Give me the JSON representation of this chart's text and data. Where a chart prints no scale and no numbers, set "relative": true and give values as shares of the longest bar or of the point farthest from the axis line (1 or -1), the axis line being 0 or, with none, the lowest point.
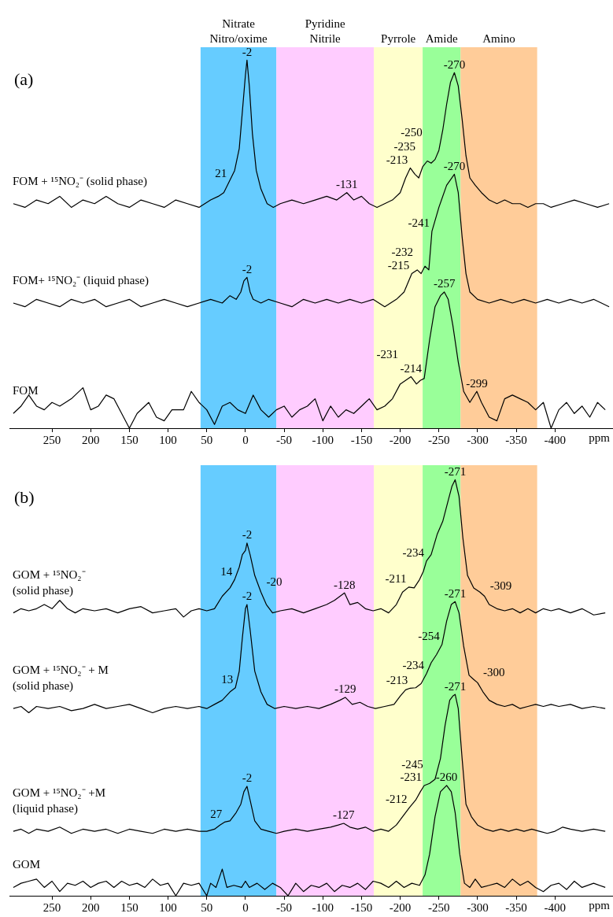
{
  "chart_data": [
    {
      "type": "line",
      "relative": true,
      "xlim": [
        305,
        -475
      ],
      "xticks": [
        250,
        200,
        150,
        100,
        50,
        0,
        -50,
        -100,
        -150,
        -200,
        -250,
        -300,
        -350,
        -400
      ],
      "xlabel": "ppm",
      "bands": [
        {
          "axis": "x",
          "from": 58,
          "to": -40,
          "label": "Nitrate\nNitro/oxime",
          "color": "#66ccff"
        },
        {
          "axis": "x",
          "from": -40,
          "to": -166,
          "label": "Pyridine\nNitrile",
          "color": "#ffccff"
        },
        {
          "axis": "x",
          "from": -166,
          "to": -229,
          "label": "Pyrrole",
          "color": "#ffffcc"
        },
        {
          "axis": "x",
          "from": -229,
          "to": -278,
          "label": "Amide",
          "color": "#99ff99"
        },
        {
          "axis": "x",
          "from": -278,
          "to": -377,
          "label": "Amino",
          "color": "#ffcc99"
        }
      ],
      "annotations": [
        "(a)",
        {
          "text": "21",
          "x": 21,
          "y": 0.67
        },
        {
          "text": "-2",
          "x": -2,
          "y": 1.0
        },
        {
          "text": "-131",
          "x": -131,
          "y": 0.64
        },
        {
          "text": "-213",
          "x": -213,
          "y": 0.707
        },
        {
          "text": "-235",
          "x": -235,
          "y": 0.726
        },
        {
          "text": "-250",
          "x": -250,
          "y": 0.755
        },
        {
          "text": "-270",
          "x": -270,
          "y": 0.966
        },
        {
          "text": "-2",
          "x": -2,
          "y": 0.41
        },
        {
          "text": "-215",
          "x": -215,
          "y": 0.42
        },
        {
          "text": "-232",
          "x": -232,
          "y": 0.44
        },
        {
          "text": "-241",
          "x": -241,
          "y": 0.535
        },
        {
          "text": "-270",
          "x": -270,
          "y": 0.69
        },
        {
          "text": "-214",
          "x": -214,
          "y": 0.14
        },
        {
          "text": "-231",
          "x": -231,
          "y": 0.135
        },
        {
          "text": "-257",
          "x": -257,
          "y": 0.37
        },
        {
          "text": "-299",
          "x": -299,
          "y": 0.1
        }
      ],
      "series": [
        {
          "name": "FOM + ¹⁵NO₂⁻ (solid phase)",
          "color": "#000000",
          "x": [
            300,
            285,
            270,
            255,
            240,
            225,
            210,
            195,
            180,
            165,
            150,
            135,
            120,
            105,
            90,
            75,
            60,
            45,
            35,
            28,
            21,
            14,
            8,
            4,
            0,
            -2,
            -5,
            -9,
            -14,
            -20,
            -28,
            -36,
            -45,
            -60,
            -75,
            -90,
            -105,
            -118,
            -131,
            -140,
            -150,
            -160,
            -170,
            -180,
            -190,
            -200,
            -207,
            -213,
            -219,
            -224,
            -229,
            -235,
            -240,
            -245,
            -250,
            -255,
            -260,
            -265,
            -270,
            -275,
            -280,
            -285,
            -290,
            -297,
            -305,
            -315,
            -325,
            -335,
            -345,
            -355,
            -365,
            -375,
            -385,
            -395,
            -410,
            -425,
            -440,
            -455,
            -470
          ],
          "values": [
            0.61,
            0.6,
            0.62,
            0.61,
            0.63,
            0.6,
            0.62,
            0.61,
            0.63,
            0.61,
            0.6,
            0.62,
            0.61,
            0.6,
            0.62,
            0.61,
            0.6,
            0.62,
            0.63,
            0.64,
            0.67,
            0.7,
            0.76,
            0.86,
            0.96,
            1.0,
            0.93,
            0.8,
            0.7,
            0.65,
            0.61,
            0.6,
            0.61,
            0.62,
            0.61,
            0.62,
            0.63,
            0.62,
            0.64,
            0.62,
            0.63,
            0.61,
            0.6,
            0.61,
            0.62,
            0.64,
            0.68,
            0.707,
            0.69,
            0.68,
            0.71,
            0.726,
            0.72,
            0.73,
            0.755,
            0.81,
            0.88,
            0.94,
            0.966,
            0.93,
            0.84,
            0.74,
            0.68,
            0.66,
            0.64,
            0.62,
            0.61,
            0.62,
            0.61,
            0.61,
            0.6,
            0.61,
            0.61,
            0.6,
            0.61,
            0.62,
            0.61,
            0.6,
            0.61
          ]
        },
        {
          "name": "FOM+ ¹⁵NO₂⁻ (liquid phase)",
          "color": "#000000",
          "x": [
            300,
            285,
            270,
            255,
            240,
            225,
            210,
            195,
            180,
            165,
            150,
            135,
            120,
            105,
            90,
            75,
            60,
            45,
            30,
            20,
            12,
            6,
            2,
            -2,
            -6,
            -10,
            -20,
            -30,
            -45,
            -60,
            -75,
            -90,
            -105,
            -120,
            -135,
            -150,
            -165,
            -180,
            -195,
            -205,
            -215,
            -222,
            -227,
            -232,
            -237,
            -241,
            -250,
            -260,
            -270,
            -275,
            -280,
            -285,
            -290,
            -300,
            -315,
            -330,
            -345,
            -360,
            -375,
            -390,
            -405,
            -420,
            -435,
            -450,
            -470
          ],
          "values": [
            0.34,
            0.33,
            0.35,
            0.34,
            0.33,
            0.35,
            0.34,
            0.35,
            0.33,
            0.34,
            0.35,
            0.33,
            0.34,
            0.35,
            0.34,
            0.33,
            0.34,
            0.35,
            0.34,
            0.36,
            0.35,
            0.37,
            0.4,
            0.41,
            0.37,
            0.35,
            0.34,
            0.35,
            0.34,
            0.33,
            0.35,
            0.34,
            0.35,
            0.34,
            0.35,
            0.34,
            0.35,
            0.33,
            0.35,
            0.37,
            0.42,
            0.43,
            0.42,
            0.44,
            0.43,
            0.535,
            0.6,
            0.66,
            0.69,
            0.64,
            0.52,
            0.42,
            0.37,
            0.35,
            0.34,
            0.35,
            0.34,
            0.35,
            0.34,
            0.35,
            0.34,
            0.35,
            0.34,
            0.35,
            0.33
          ]
        },
        {
          "name": "FOM",
          "color": "#000000",
          "x": [
            300,
            290,
            280,
            270,
            260,
            250,
            240,
            225,
            210,
            200,
            190,
            180,
            170,
            160,
            150,
            140,
            125,
            115,
            105,
            95,
            80,
            70,
            60,
            50,
            40,
            30,
            20,
            10,
            0,
            -10,
            -20,
            -30,
            -40,
            -50,
            -60,
            -70,
            -80,
            -90,
            -100,
            -110,
            -120,
            -130,
            -140,
            -150,
            -160,
            -170,
            -180,
            -190,
            -200,
            -207,
            -214,
            -221,
            -226,
            -231,
            -238,
            -245,
            -252,
            -257,
            -262,
            -268,
            -275,
            -282,
            -290,
            -299,
            -305,
            -315,
            -325,
            -335,
            -345,
            -355,
            -365,
            -375,
            -385,
            -395,
            -405,
            -415,
            -425,
            -435,
            -445,
            -455,
            -465
          ],
          "values": [
            0.04,
            0.06,
            0.09,
            0.06,
            0.05,
            0.07,
            0.06,
            0.08,
            0.11,
            0.05,
            0.06,
            0.09,
            0.08,
            0.04,
            0.0,
            0.04,
            0.07,
            0.03,
            0.02,
            0.05,
            0.05,
            0.1,
            0.07,
            0.05,
            0.01,
            0.06,
            0.07,
            0.05,
            0.04,
            0.09,
            0.05,
            0.03,
            0.05,
            0.06,
            0.03,
            0.05,
            0.06,
            0.08,
            0.02,
            0.06,
            0.03,
            0.05,
            0.04,
            0.06,
            0.08,
            0.05,
            0.06,
            0.08,
            0.12,
            0.13,
            0.14,
            0.12,
            0.13,
            0.135,
            0.24,
            0.33,
            0.36,
            0.37,
            0.35,
            0.28,
            0.18,
            0.1,
            0.07,
            0.1,
            0.07,
            0.03,
            0.02,
            0.08,
            0.09,
            0.08,
            0.07,
            0.05,
            0.07,
            0.0,
            0.05,
            0.07,
            0.04,
            0.06,
            0.03,
            0.07,
            0.05
          ]
        }
      ]
    },
    {
      "type": "line",
      "relative": true,
      "xlim": [
        305,
        -475
      ],
      "xticks": [
        250,
        200,
        150,
        100,
        50,
        0,
        -50,
        -100,
        -150,
        -200,
        -250,
        -300,
        -350,
        -400
      ],
      "xlabel": "ppm",
      "bands": [
        {
          "axis": "x",
          "from": 58,
          "to": -40,
          "color": "#66ccff"
        },
        {
          "axis": "x",
          "from": -40,
          "to": -166,
          "color": "#ffccff"
        },
        {
          "axis": "x",
          "from": -166,
          "to": -229,
          "color": "#ffffcc"
        },
        {
          "axis": "x",
          "from": -229,
          "to": -278,
          "color": "#99ff99"
        },
        {
          "axis": "x",
          "from": -278,
          "to": -377,
          "color": "#ffcc99"
        }
      ],
      "annotations": [
        "(b)",
        {
          "text": "14",
          "x": 14,
          "y": 0.76
        },
        {
          "text": "-2",
          "x": -2,
          "y": 0.848
        },
        {
          "text": "-20",
          "x": -20,
          "y": 0.73
        },
        {
          "text": "-128",
          "x": -128,
          "y": 0.728
        },
        {
          "text": "-211",
          "x": -211,
          "y": 0.742
        },
        {
          "text": "-234",
          "x": -234,
          "y": 0.805
        },
        {
          "text": "-271",
          "x": -271,
          "y": 1.0
        },
        {
          "text": "-309",
          "x": -309,
          "y": 0.72
        },
        {
          "text": "13",
          "x": 13,
          "y": 0.5
        },
        {
          "text": "-2",
          "x": -2,
          "y": 0.7
        },
        {
          "text": "-129",
          "x": -129,
          "y": 0.477
        },
        {
          "text": "-213",
          "x": -213,
          "y": 0.499
        },
        {
          "text": "-234",
          "x": -234,
          "y": 0.534
        },
        {
          "text": "-254",
          "x": -254,
          "y": 0.604
        },
        {
          "text": "-271",
          "x": -271,
          "y": 0.707
        },
        {
          "text": "-300",
          "x": -300,
          "y": 0.512
        },
        {
          "text": "27",
          "x": 27,
          "y": 0.177
        },
        {
          "text": "-2",
          "x": -2,
          "y": 0.263
        },
        {
          "text": "-127",
          "x": -127,
          "y": 0.174
        },
        {
          "text": "-212",
          "x": -212,
          "y": 0.212
        },
        {
          "text": "-231",
          "x": -231,
          "y": 0.265
        },
        {
          "text": "-245",
          "x": -245,
          "y": 0.28
        },
        {
          "text": "-271",
          "x": -271,
          "y": 0.484
        },
        {
          "text": "-260",
          "x": -260,
          "y": 0.265
        }
      ],
      "series": [
        {
          "name": "GOM + ¹⁵NO₂⁻\n(solid phase)",
          "color": "#000000",
          "x": [
            300,
            290,
            280,
            270,
            260,
            250,
            240,
            230,
            220,
            210,
            195,
            180,
            165,
            150,
            135,
            120,
            105,
            90,
            80,
            70,
            60,
            50,
            40,
            30,
            20,
            14,
            8,
            4,
            0,
            -2,
            -6,
            -12,
            -20,
            -27,
            -35,
            -45,
            -60,
            -75,
            -90,
            -105,
            -115,
            -128,
            -135,
            -145,
            -155,
            -165,
            -175,
            -185,
            -195,
            -203,
            -211,
            -218,
            -225,
            -230,
            -234,
            -240,
            -248,
            -255,
            -262,
            -267,
            -271,
            -276,
            -281,
            -287,
            -295,
            -303,
            -309,
            -315,
            -325,
            -335,
            -345,
            -355,
            -365,
            -375,
            -385,
            -395,
            -405,
            -420,
            -435,
            -450,
            -465
          ],
          "values": [
            0.68,
            0.69,
            0.685,
            0.69,
            0.7,
            0.69,
            0.71,
            0.69,
            0.68,
            0.69,
            0.685,
            0.69,
            0.68,
            0.69,
            0.695,
            0.68,
            0.685,
            0.69,
            0.67,
            0.685,
            0.69,
            0.685,
            0.69,
            0.72,
            0.74,
            0.76,
            0.79,
            0.82,
            0.83,
            0.848,
            0.82,
            0.77,
            0.73,
            0.7,
            0.68,
            0.685,
            0.69,
            0.68,
            0.69,
            0.7,
            0.71,
            0.728,
            0.7,
            0.705,
            0.69,
            0.685,
            0.69,
            0.68,
            0.7,
            0.73,
            0.742,
            0.74,
            0.76,
            0.78,
            0.805,
            0.82,
            0.87,
            0.9,
            0.95,
            0.985,
            1.0,
            0.96,
            0.86,
            0.77,
            0.74,
            0.73,
            0.72,
            0.7,
            0.69,
            0.685,
            0.69,
            0.68,
            0.69,
            0.68,
            0.69,
            0.685,
            0.69,
            0.68,
            0.69,
            0.675,
            0.68
          ]
        },
        {
          "name": "GOM + ¹⁵NO₂⁻ + M\n(solid phase)",
          "color": "#000000",
          "x": [
            300,
            290,
            280,
            270,
            255,
            240,
            225,
            210,
            195,
            180,
            165,
            150,
            135,
            120,
            105,
            90,
            75,
            60,
            50,
            40,
            30,
            20,
            13,
            8,
            4,
            0,
            -2,
            -6,
            -12,
            -20,
            -28,
            -38,
            -50,
            -65,
            -80,
            -95,
            -110,
            -122,
            -129,
            -138,
            -148,
            -158,
            -168,
            -180,
            -192,
            -200,
            -207,
            -213,
            -220,
            -227,
            -234,
            -240,
            -247,
            -254,
            -260,
            -266,
            -271,
            -276,
            -282,
            -289,
            -295,
            -300,
            -307,
            -315,
            -325,
            -335,
            -345,
            -355,
            -365,
            -375,
            -385,
            -395,
            -405,
            -420,
            -435,
            -450,
            -465
          ],
          "values": [
            0.45,
            0.455,
            0.44,
            0.455,
            0.45,
            0.455,
            0.445,
            0.45,
            0.46,
            0.45,
            0.455,
            0.46,
            0.45,
            0.44,
            0.45,
            0.455,
            0.45,
            0.455,
            0.45,
            0.46,
            0.47,
            0.49,
            0.5,
            0.54,
            0.62,
            0.69,
            0.7,
            0.64,
            0.54,
            0.49,
            0.46,
            0.45,
            0.455,
            0.45,
            0.455,
            0.45,
            0.46,
            0.47,
            0.477,
            0.46,
            0.465,
            0.455,
            0.45,
            0.455,
            0.46,
            0.48,
            0.495,
            0.499,
            0.5,
            0.51,
            0.534,
            0.56,
            0.58,
            0.604,
            0.66,
            0.7,
            0.707,
            0.68,
            0.6,
            0.53,
            0.52,
            0.512,
            0.49,
            0.47,
            0.46,
            0.455,
            0.46,
            0.45,
            0.455,
            0.46,
            0.455,
            0.46,
            0.455,
            0.46,
            0.45,
            0.455,
            0.45
          ]
        },
        {
          "name": "GOM + ¹⁵NO₂⁻ +M\n(liquid phase)",
          "color": "#000000",
          "x": [
            300,
            290,
            280,
            270,
            255,
            240,
            225,
            210,
            195,
            180,
            165,
            150,
            135,
            120,
            105,
            90,
            75,
            60,
            50,
            40,
            33,
            27,
            20,
            12,
            6,
            2,
            -2,
            -6,
            -12,
            -20,
            -30,
            -40,
            -50,
            -65,
            -80,
            -95,
            -110,
            -120,
            -127,
            -135,
            -145,
            -155,
            -165,
            -175,
            -185,
            -195,
            -203,
            -212,
            -220,
            -226,
            -231,
            -238,
            -245,
            -252,
            -258,
            -264,
            -268,
            -271,
            -275,
            -280,
            -285,
            -292,
            -300,
            -310,
            -320,
            -330,
            -340,
            -350,
            -360,
            -370,
            -380,
            -390,
            -400,
            -410,
            -420,
            -435,
            -450,
            -465
          ],
          "values": [
            0.155,
            0.16,
            0.15,
            0.16,
            0.155,
            0.165,
            0.15,
            0.16,
            0.155,
            0.16,
            0.15,
            0.16,
            0.155,
            0.15,
            0.16,
            0.155,
            0.16,
            0.155,
            0.155,
            0.16,
            0.17,
            0.177,
            0.18,
            0.2,
            0.22,
            0.25,
            0.263,
            0.23,
            0.18,
            0.16,
            0.155,
            0.15,
            0.155,
            0.16,
            0.155,
            0.16,
            0.165,
            0.17,
            0.174,
            0.165,
            0.16,
            0.165,
            0.155,
            0.16,
            0.155,
            0.17,
            0.19,
            0.212,
            0.23,
            0.25,
            0.265,
            0.27,
            0.28,
            0.33,
            0.41,
            0.47,
            0.48,
            0.484,
            0.45,
            0.33,
            0.22,
            0.19,
            0.17,
            0.16,
            0.155,
            0.16,
            0.155,
            0.16,
            0.155,
            0.16,
            0.155,
            0.15,
            0.155,
            0.165,
            0.16,
            0.155,
            0.16,
            0.155
          ]
        },
        {
          "name": "GOM",
          "color": "#000000",
          "x": [
            300,
            290,
            280,
            270,
            260,
            250,
            240,
            230,
            220,
            210,
            200,
            190,
            180,
            170,
            160,
            150,
            140,
            130,
            120,
            110,
            100,
            90,
            80,
            70,
            60,
            50,
            45,
            38,
            30,
            24,
            15,
            5,
            0,
            -5,
            -15,
            -25,
            -35,
            -45,
            -55,
            -65,
            -75,
            -85,
            -95,
            -105,
            -115,
            -125,
            -135,
            -145,
            -155,
            -165,
            -175,
            -185,
            -195,
            -205,
            -215,
            -225,
            -232,
            -238,
            -245,
            -252,
            -260,
            -266,
            -271,
            -277,
            -283,
            -290,
            -297,
            -305,
            -315,
            -325,
            -335,
            -345,
            -355,
            -365,
            -375,
            -385,
            -395,
            -405,
            -415,
            -425,
            -435,
            -450,
            -465
          ],
          "values": [
            0.02,
            0.03,
            0.035,
            0.04,
            0.02,
            0.035,
            0.01,
            0.03,
            0.025,
            0.035,
            0.02,
            0.03,
            0.035,
            0.02,
            0.035,
            0.025,
            0.03,
            0.02,
            0.04,
            0.025,
            0.03,
            0.0,
            0.03,
            0.025,
            0.03,
            0.0,
            0.03,
            0.02,
            0.064,
            0.02,
            0.025,
            0.02,
            0.035,
            0.02,
            0.03,
            0.015,
            0.03,
            0.02,
            0.0,
            0.03,
            0.01,
            0.025,
            0.02,
            0.03,
            0.01,
            0.025,
            0.02,
            0.03,
            0.015,
            0.035,
            0.03,
            0.02,
            0.035,
            0.02,
            0.03,
            0.025,
            0.05,
            0.1,
            0.19,
            0.25,
            0.265,
            0.25,
            0.2,
            0.1,
            0.03,
            0.02,
            0.04,
            0.02,
            0.025,
            0.03,
            0.02,
            0.04,
            0.025,
            0.035,
            0.02,
            0.01,
            0.025,
            0.03,
            0.015,
            0.035,
            0.02,
            0.03,
            0.02
          ]
        }
      ]
    }
  ]
}
